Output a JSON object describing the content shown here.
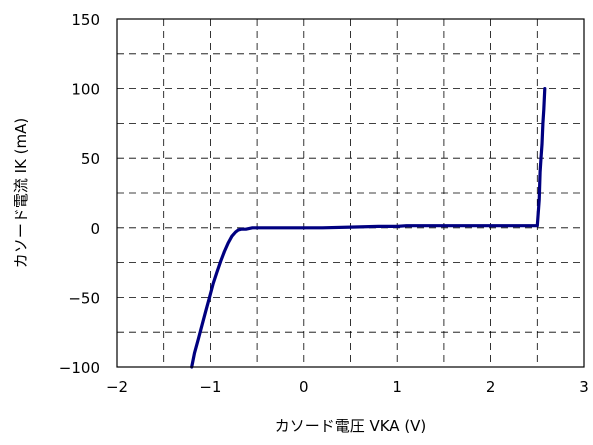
{
  "chart_data": {
    "type": "line",
    "title": "",
    "xlabel": "カソード電圧 VKA (V)",
    "ylabel": "カソード電流 IK (mA)",
    "xlim": [
      -2,
      3
    ],
    "ylim": [
      -100,
      150
    ],
    "xticks": [
      -2,
      -1,
      0,
      1,
      2,
      3
    ],
    "yticks": [
      -100,
      -50,
      0,
      50,
      100,
      150
    ],
    "xtick_labels": [
      "−2",
      "−1",
      "0",
      "1",
      "2",
      "3"
    ],
    "ytick_labels": [
      "−100",
      "−50",
      "0",
      "50",
      "100",
      "150"
    ],
    "x_minor_step": 0.5,
    "y_minor_step": 25,
    "grid": true,
    "grid_style": "dashed",
    "legend": "none",
    "series": [
      {
        "color": "#000080",
        "x": [
          -1.2,
          -1.17,
          -1.13,
          -1.09,
          -1.05,
          -1.01,
          -0.97,
          -0.93,
          -0.89,
          -0.85,
          -0.81,
          -0.77,
          -0.73,
          -0.7,
          -0.67,
          -0.62,
          -0.55,
          -0.5,
          -0.2,
          0.2,
          0.5,
          0.8,
          1.0,
          1.1,
          1.5,
          2.0,
          2.3,
          2.5,
          2.52,
          2.53,
          2.54,
          2.55,
          2.56,
          2.57,
          2.58
        ],
        "y": [
          -100,
          -90,
          -80,
          -70,
          -60,
          -50,
          -40,
          -32,
          -24,
          -17,
          -11,
          -6,
          -3,
          -1.5,
          -1,
          -1,
          0,
          0,
          0,
          0,
          0.5,
          1,
          1,
          1.5,
          1.5,
          1.5,
          1.5,
          1.5,
          20,
          40,
          50,
          60,
          75,
          85,
          100
        ]
      }
    ]
  }
}
